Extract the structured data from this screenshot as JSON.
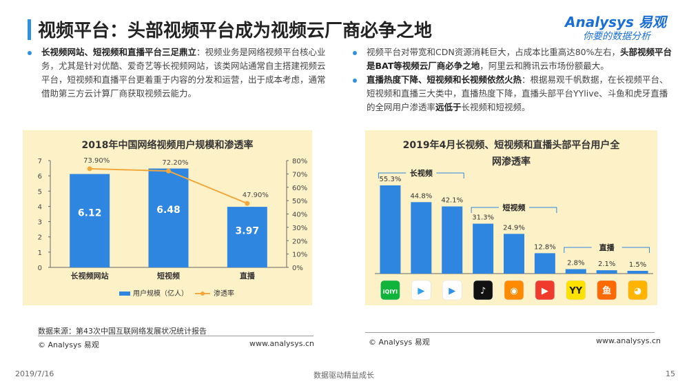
{
  "header": {
    "title": "视频平台：头部视频平台成为视频云厂商必争之地",
    "logo_brand": "Analysys 易观",
    "logo_slogan": "你要的数据分析"
  },
  "bullets_left": [
    {
      "bold": "长视频网站、短视频和直播平台三足鼎立",
      "text": "：视频业务是网络视频平台核心业务，尤其是针对优酷、爱奇艺等长视频网站，该类网站通常自主搭建视频云平台，短视频和直播平台更着重于内容的分发和运营，出于成本考虑，通常借助第三方云计算厂商获取视频云能力。"
    }
  ],
  "bullets_right": [
    {
      "pre": "视频平台对带宽和CDN资源消耗巨大，占成本比重高达80%左右，",
      "bold": "头部视频平台是BAT等视频云厂商必争之地",
      "post": "，阿里云和腾讯云市场份额最大。"
    },
    {
      "bold": "直播热度下降、短视频和长视频依然火热",
      "pre2": "：根据易观千帆数据，在长视频平台、短视频和直播三大类中，直播热度下降，直播头部平台YYlive、斗鱼和虎牙直播的全网用户渗透率",
      "bold2": "远低于",
      "post": "长视频和短视频。"
    }
  ],
  "chart_data": [
    {
      "type": "bar",
      "title": "2018年中国网络视频用户规模和渗透率",
      "categories": [
        "长视频网站",
        "短视频",
        "直播"
      ],
      "series": [
        {
          "name": "用户规模（亿人）",
          "type": "bar",
          "axis": "left",
          "values": [
            6.12,
            6.48,
            3.97
          ],
          "labels": [
            "6.12",
            "6.48",
            "3.97"
          ]
        },
        {
          "name": "渗透率",
          "type": "line",
          "axis": "right",
          "values": [
            73.9,
            72.2,
            47.9
          ],
          "labels": [
            "73.90%",
            "72.20%",
            "47.90%"
          ]
        }
      ],
      "y_left": {
        "min": 0,
        "max": 7,
        "ticks": [
          "0",
          "1",
          "2",
          "3",
          "4",
          "5",
          "6",
          "7"
        ]
      },
      "y_right": {
        "min": 0,
        "max": 80,
        "ticks": [
          "0%",
          "10%",
          "20%",
          "30%",
          "40%",
          "50%",
          "60%",
          "70%",
          "80%"
        ]
      },
      "colors": {
        "bar": "#2f86e0",
        "line": "#f3a83b"
      },
      "source": "数据来源：第43次中国互联网络发展状况统计报告",
      "footer_left": "© Analysys 易观",
      "footer_right": "www.analysys.cn"
    },
    {
      "type": "bar",
      "title": "2019年4月长视频、短视频和直播头部平台用户全网渗透率",
      "title_lines": [
        "2019年4月长视频、短视频和直播头部平台用户全",
        "网渗透率"
      ],
      "values": [
        55.3,
        44.8,
        42.1,
        31.3,
        24.9,
        12.8,
        2.8,
        2.1,
        1.5
      ],
      "labels": [
        "55.3%",
        "44.8%",
        "42.1%",
        "31.3%",
        "24.9%",
        "12.8%",
        "2.8%",
        "2.1%",
        "1.5%"
      ],
      "groups": [
        {
          "name": "长视频",
          "range": [
            0,
            2
          ]
        },
        {
          "name": "短视频",
          "range": [
            3,
            5
          ]
        },
        {
          "name": "直播",
          "range": [
            6,
            8
          ]
        }
      ],
      "icons": [
        {
          "name": "iqiyi-icon",
          "text": "iQIYI",
          "bg": "#11b43b",
          "fg": "#ffffff"
        },
        {
          "name": "tencent-video-icon",
          "text": "▶",
          "bg": "#ffffff",
          "fg": "#31a0f0"
        },
        {
          "name": "youku-icon",
          "text": "▶",
          "bg": "#ffffff",
          "fg": "#2d8ff0"
        },
        {
          "name": "douyin-icon",
          "text": "♪",
          "bg": "#111111",
          "fg": "#ffffff"
        },
        {
          "name": "kuaishou-icon",
          "text": "◉",
          "bg": "#ff8a00",
          "fg": "#ffffff"
        },
        {
          "name": "huoshan-icon",
          "text": "▶",
          "bg": "#f03a2b",
          "fg": "#ffffff"
        },
        {
          "name": "yy-icon",
          "text": "YY",
          "bg": "#ffe100",
          "fg": "#222222"
        },
        {
          "name": "douyu-icon",
          "text": "鱼",
          "bg": "#ff6a00",
          "fg": "#ffffff"
        },
        {
          "name": "huya-icon",
          "text": "◕",
          "bg": "#ffb400",
          "fg": "#ffffff"
        }
      ],
      "colors": {
        "bar": "#2f86e0"
      },
      "footer_left": "© Analysys 易观",
      "footer_right": "www.analysys.cn"
    }
  ],
  "page_footer": {
    "date": "2019/7/16",
    "center": "数据驱动精益成长",
    "page": "15"
  }
}
